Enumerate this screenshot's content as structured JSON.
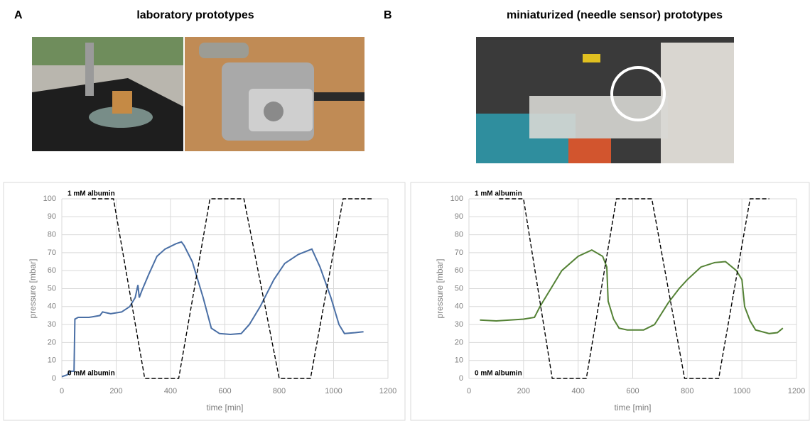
{
  "panels": [
    {
      "label": "A",
      "title": "laboratory prototypes"
    },
    {
      "label": "B",
      "title": "miniaturized (needle sensor) prototypes"
    }
  ],
  "chart_data": [
    {
      "type": "line",
      "xlabel": "time [min]",
      "ylabel": "pressure [mbar]",
      "xlim": [
        0,
        1200
      ],
      "xticks": [
        0,
        200,
        400,
        600,
        800,
        1000,
        1200
      ],
      "ylim": [
        0,
        100
      ],
      "yticks": [
        0,
        10,
        20,
        30,
        40,
        50,
        60,
        70,
        80,
        90,
        100
      ],
      "grid": true,
      "annotations": [
        "1 mM albumin",
        "0 mM albumin"
      ],
      "series": [
        {
          "color": "#4a6fa5",
          "dash": "solid",
          "x": [
            0,
            20,
            30,
            45,
            48,
            60,
            100,
            140,
            150,
            180,
            220,
            250,
            270,
            280,
            285,
            295,
            320,
            350,
            380,
            420,
            440,
            450,
            480,
            520,
            550,
            580,
            620,
            660,
            690,
            730,
            780,
            820,
            870,
            920,
            950,
            990,
            1020,
            1040,
            1080,
            1110
          ],
          "values": [
            1,
            2,
            4,
            4,
            33,
            34,
            34,
            35,
            37,
            36,
            37,
            40,
            45,
            52,
            45,
            49,
            58,
            68,
            72,
            75,
            76,
            74,
            65,
            45,
            28,
            25,
            24.5,
            25,
            30,
            40,
            55,
            64,
            69,
            72,
            62,
            45,
            30,
            25,
            25.5,
            26
          ]
        },
        {
          "color": "#000000",
          "dash": "dashed",
          "x": [
            110,
            190,
            305,
            430,
            545,
            670,
            800,
            915,
            1035,
            1140
          ],
          "values": [
            100,
            100,
            0,
            0,
            100,
            100,
            0,
            0,
            100,
            100
          ]
        }
      ]
    },
    {
      "type": "line",
      "xlabel": "time [min]",
      "ylabel": "pressure [mbar]",
      "xlim": [
        0,
        1200
      ],
      "xticks": [
        0,
        200,
        400,
        600,
        800,
        1000,
        1200
      ],
      "ylim": [
        0,
        100
      ],
      "yticks": [
        0,
        10,
        20,
        30,
        40,
        50,
        60,
        70,
        80,
        90,
        100
      ],
      "grid": true,
      "annotations": [
        "1 mM albumin",
        "0 mM albumin"
      ],
      "series": [
        {
          "color": "#548235",
          "dash": "solid",
          "x": [
            40,
            100,
            200,
            240,
            260,
            300,
            340,
            400,
            450,
            490,
            505,
            510,
            530,
            550,
            580,
            640,
            680,
            730,
            770,
            800,
            850,
            900,
            940,
            980,
            1000,
            1010,
            1030,
            1050,
            1100,
            1130,
            1150
          ],
          "values": [
            32.5,
            32,
            33,
            34,
            40,
            50,
            60,
            68,
            71.5,
            68,
            62,
            43,
            33,
            28,
            27,
            27,
            30,
            42,
            50,
            55,
            62,
            64.5,
            65,
            60,
            55,
            40,
            32,
            27,
            25,
            25.5,
            28
          ]
        },
        {
          "color": "#000000",
          "dash": "dashed",
          "x": [
            110,
            200,
            305,
            430,
            540,
            670,
            790,
            915,
            1030,
            1100
          ],
          "values": [
            100,
            100,
            0,
            0,
            100,
            100,
            0,
            0,
            100,
            100
          ]
        }
      ]
    }
  ]
}
